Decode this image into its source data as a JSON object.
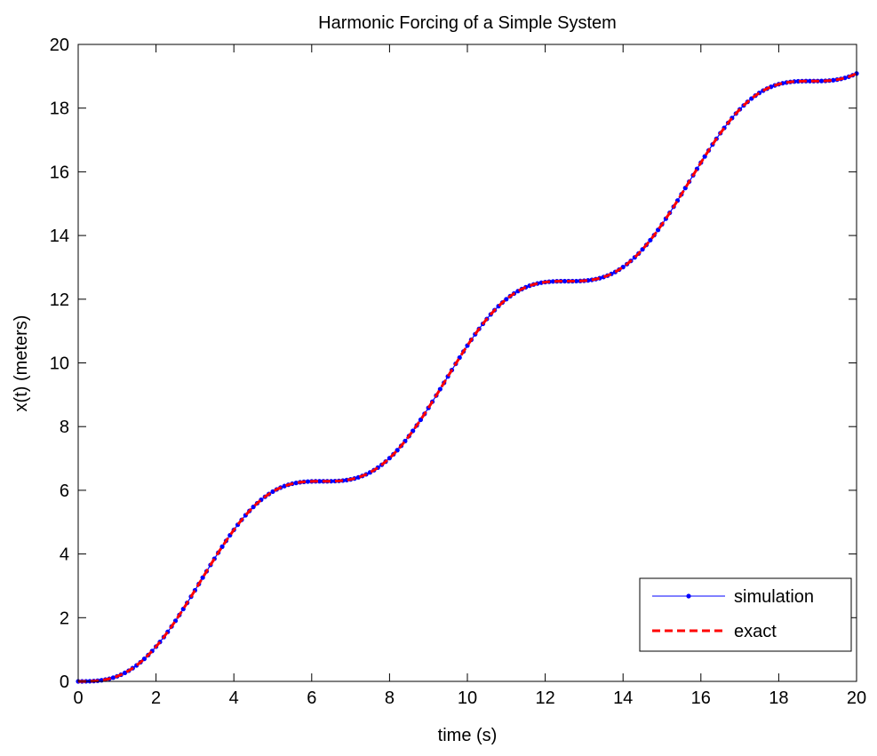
{
  "chart_data": {
    "type": "line",
    "title": "Harmonic Forcing of a Simple System",
    "xlabel": "time (s)",
    "ylabel": "x(t) (meters)",
    "xlim": [
      0,
      20
    ],
    "ylim": [
      0,
      20
    ],
    "xticks": [
      0,
      2,
      4,
      6,
      8,
      10,
      12,
      14,
      16,
      18,
      20
    ],
    "yticks": [
      0,
      2,
      4,
      6,
      8,
      10,
      12,
      14,
      16,
      18,
      20
    ],
    "xtick_labels": [
      "0",
      "2",
      "4",
      "6",
      "8",
      "10",
      "12",
      "14",
      "16",
      "18",
      "20"
    ],
    "ytick_labels": [
      "0",
      "2",
      "4",
      "6",
      "8",
      "10",
      "12",
      "14",
      "16",
      "18",
      "20"
    ],
    "grid": false,
    "legend_position": "bottom-right",
    "model": "x(t) = t - sin(t)",
    "sample_step": 0.1,
    "series": [
      {
        "name": "simulation",
        "color": "#0000ff",
        "style": "solid-with-dot-markers",
        "x": [
          0,
          1,
          2,
          3,
          4,
          5,
          6,
          7,
          8,
          9,
          10,
          11,
          12,
          13,
          14,
          15,
          16,
          17,
          18,
          19,
          20
        ],
        "y": [
          0,
          0.16,
          1.09,
          2.86,
          4.76,
          5.96,
          6.28,
          6.34,
          7.01,
          8.59,
          10.54,
          12.0,
          12.54,
          12.58,
          13.01,
          14.35,
          16.29,
          17.96,
          18.75,
          18.85,
          19.09
        ]
      },
      {
        "name": "exact",
        "color": "#ff0000",
        "style": "dashed",
        "x": [
          0,
          1,
          2,
          3,
          4,
          5,
          6,
          7,
          8,
          9,
          10,
          11,
          12,
          13,
          14,
          15,
          16,
          17,
          18,
          19,
          20
        ],
        "y": [
          0,
          0.16,
          1.09,
          2.86,
          4.76,
          5.96,
          6.28,
          6.34,
          7.01,
          8.59,
          10.54,
          12.0,
          12.54,
          12.58,
          13.01,
          14.35,
          16.29,
          17.96,
          18.75,
          18.85,
          19.09
        ]
      }
    ]
  }
}
